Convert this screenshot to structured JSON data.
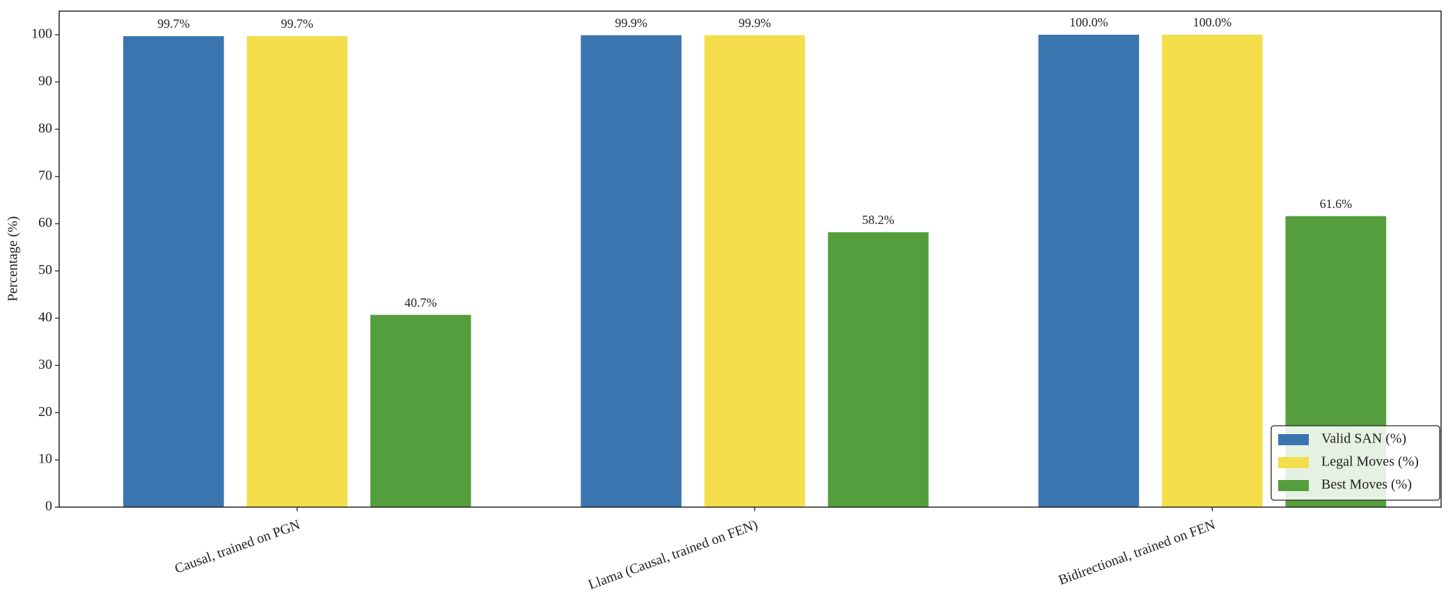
{
  "chart_data": {
    "type": "bar",
    "y_label": "Percentage (%)",
    "categories": [
      "Causal, trained on PGN",
      "Llama (Causal, trained on FEN)",
      "Bidirectional, trained on FEN"
    ],
    "series": [
      {
        "name": "Valid SAN (%)",
        "color": "#3a75b0",
        "values": [
          99.7,
          99.9,
          100.0
        ],
        "value_labels": [
          "99.7%",
          "99.9%",
          "100.0%"
        ]
      },
      {
        "name": "Legal Moves (%)",
        "color": "#f5de4c",
        "values": [
          99.7,
          99.9,
          100.0
        ],
        "value_labels": [
          "99.7%",
          "99.9%",
          "100.0%"
        ]
      },
      {
        "name": "Best Moves (%)",
        "color": "#559e3e",
        "values": [
          40.7,
          58.2,
          61.6
        ],
        "value_labels": [
          "40.7%",
          "58.2%",
          "61.6%"
        ]
      }
    ],
    "ylim": [
      0,
      105
    ],
    "yticks": [
      0,
      10,
      20,
      30,
      40,
      50,
      60,
      70,
      80,
      90,
      100
    ],
    "legend": "lower right"
  }
}
